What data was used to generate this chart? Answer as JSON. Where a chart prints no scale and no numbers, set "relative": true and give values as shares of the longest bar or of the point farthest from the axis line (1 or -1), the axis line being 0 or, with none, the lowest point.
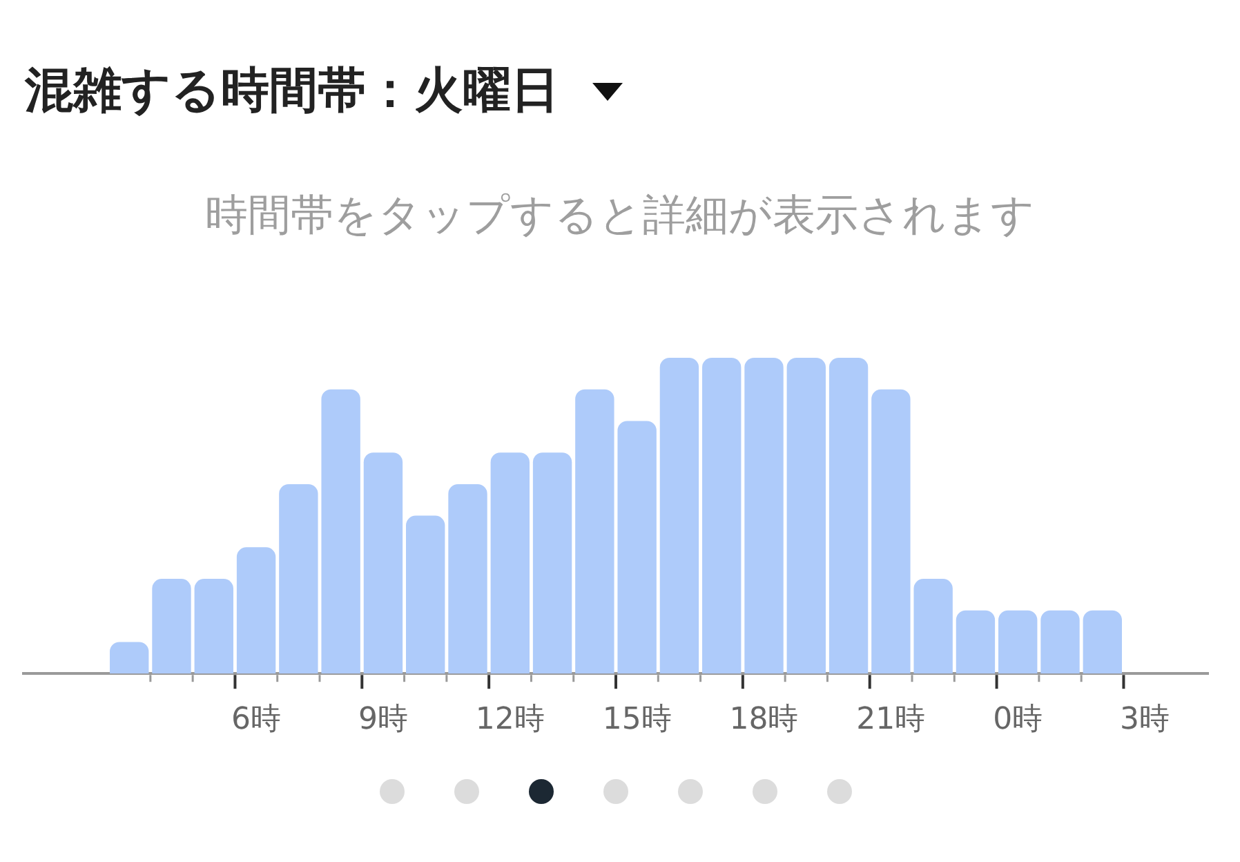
{
  "chart_data": {
    "type": "bar",
    "title": "混雑する時間帯：火曜日",
    "subtitle": "時間帯をタップすると詳細が表示されます",
    "categories": [
      null,
      null,
      null,
      null,
      null,
      "6時",
      null,
      null,
      "9時",
      null,
      null,
      "12時",
      null,
      null,
      "15時",
      null,
      null,
      "18時",
      null,
      null,
      "21時",
      null,
      null,
      "0時",
      null,
      null,
      "3時",
      null
    ],
    "values": [
      null,
      null,
      0.1,
      0.3,
      0.3,
      0.4,
      0.6,
      0.9,
      0.7,
      0.5,
      0.6,
      0.7,
      0.7,
      0.9,
      0.8,
      1,
      1,
      1,
      1,
      1,
      0.9,
      0.3,
      0.2,
      0.2,
      0.2,
      0.2,
      null,
      null
    ],
    "color": "#aecbfa",
    "relative": true,
    "legend": false
  }
}
